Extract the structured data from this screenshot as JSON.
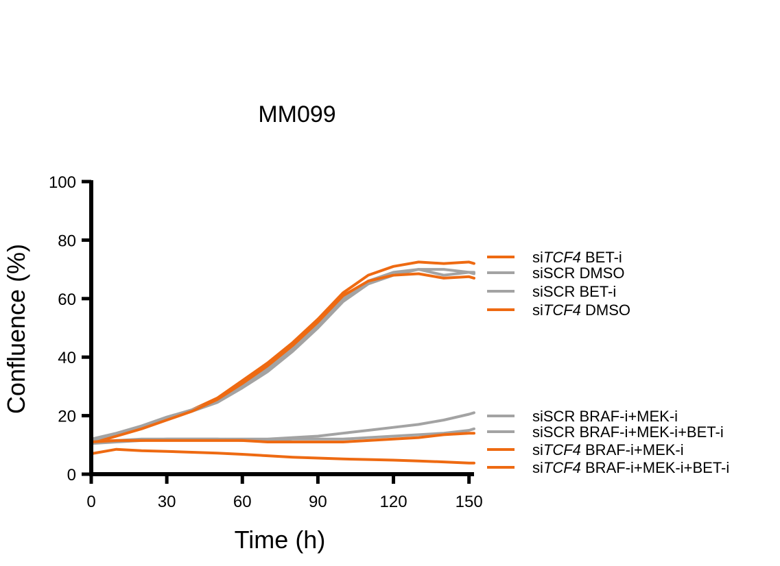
{
  "chart_data": {
    "type": "line",
    "title": "MM099",
    "xlabel": "Time (h)",
    "ylabel": "Confluence (%)",
    "xlim": [
      0,
      152
    ],
    "ylim": [
      0,
      100
    ],
    "xticks": [
      0,
      30,
      60,
      90,
      120,
      150
    ],
    "yticks": [
      0,
      20,
      40,
      60,
      80,
      100
    ],
    "colors": {
      "orange": "#ee6a12",
      "gray": "#a3a3a3"
    },
    "series": [
      {
        "name": "siTCF4 BET-i",
        "name_parts": [
          "si",
          "TCF4",
          " BET-i"
        ],
        "color": "#ee6a12",
        "x": [
          0,
          10,
          20,
          30,
          40,
          50,
          60,
          70,
          80,
          90,
          100,
          110,
          120,
          130,
          140,
          150,
          152
        ],
        "y": [
          11,
          13.5,
          16,
          19,
          22,
          26,
          32,
          38,
          45,
          53,
          62,
          68,
          71,
          72.5,
          72,
          72.5,
          72
        ]
      },
      {
        "name": "siSCR DMSO",
        "name_parts": [
          "siSCR DMSO"
        ],
        "color": "#a3a3a3",
        "x": [
          0,
          10,
          20,
          30,
          40,
          50,
          60,
          70,
          80,
          90,
          100,
          110,
          120,
          130,
          140,
          150,
          152
        ],
        "y": [
          12,
          14,
          16.5,
          19.5,
          22,
          25,
          30,
          36,
          43,
          51,
          60,
          66,
          69,
          70,
          70,
          69,
          69
        ]
      },
      {
        "name": "siSCR BET-i",
        "name_parts": [
          "siSCR BET-i"
        ],
        "color": "#a3a3a3",
        "x": [
          0,
          10,
          20,
          30,
          40,
          50,
          60,
          70,
          80,
          90,
          100,
          110,
          120,
          130,
          140,
          150,
          152
        ],
        "y": [
          11.5,
          13.5,
          16,
          19,
          21.5,
          24.5,
          29.5,
          35,
          42,
          50,
          59,
          65,
          68,
          70,
          68,
          69,
          68.5
        ]
      },
      {
        "name": "siTCF4 DMSO",
        "name_parts": [
          "si",
          "TCF4",
          " DMSO"
        ],
        "color": "#ee6a12",
        "x": [
          0,
          10,
          20,
          30,
          40,
          50,
          60,
          70,
          80,
          90,
          100,
          110,
          120,
          130,
          140,
          150,
          152
        ],
        "y": [
          10.5,
          13,
          15.5,
          18.5,
          21.5,
          25.5,
          31,
          37,
          44,
          52,
          61,
          66,
          68,
          68.5,
          67,
          67.5,
          67
        ]
      },
      {
        "name": "siSCR BRAF-i+MEK-i",
        "name_parts": [
          "siSCR BRAF-i+MEK-i"
        ],
        "color": "#a3a3a3",
        "x": [
          0,
          10,
          20,
          30,
          40,
          50,
          60,
          70,
          80,
          90,
          100,
          110,
          120,
          130,
          140,
          150,
          152
        ],
        "y": [
          11,
          11.5,
          12,
          12,
          12,
          12,
          12,
          12,
          12.5,
          13,
          14,
          15,
          16,
          17,
          18.5,
          20.5,
          21
        ]
      },
      {
        "name": "siSCR BRAF-i+MEK-i+BET-i",
        "name_parts": [
          "siSCR BRAF-i+MEK-i+BET-i"
        ],
        "color": "#a3a3a3",
        "x": [
          0,
          10,
          20,
          30,
          40,
          50,
          60,
          70,
          80,
          90,
          100,
          110,
          120,
          130,
          140,
          150,
          152
        ],
        "y": [
          10.5,
          11,
          11.5,
          12,
          12,
          12,
          11.5,
          11.5,
          12,
          12,
          12,
          12.5,
          13,
          13.5,
          14,
          15,
          15.5
        ]
      },
      {
        "name": "siTCF4 BRAF-i+MEK-i",
        "name_parts": [
          "si",
          "TCF4",
          " BRAF-i+MEK-i"
        ],
        "color": "#ee6a12",
        "x": [
          0,
          10,
          20,
          30,
          40,
          50,
          60,
          70,
          80,
          90,
          100,
          110,
          120,
          130,
          140,
          150,
          152
        ],
        "y": [
          11,
          11.5,
          11.5,
          11.5,
          11.5,
          11.5,
          11.5,
          11,
          11,
          11,
          11,
          11.5,
          12,
          12.5,
          13.5,
          14,
          14
        ]
      },
      {
        "name": "siTCF4 BRAF-i+MEK-i+BET-i",
        "name_parts": [
          "si",
          "TCF4",
          " BRAF-i+MEK-i+BET-i"
        ],
        "color": "#ee6a12",
        "x": [
          0,
          10,
          20,
          30,
          40,
          50,
          60,
          70,
          80,
          90,
          100,
          110,
          120,
          130,
          140,
          150,
          152
        ],
        "y": [
          7,
          8.5,
          8,
          7.8,
          7.5,
          7.2,
          6.8,
          6.3,
          5.8,
          5.5,
          5.2,
          5,
          4.8,
          4.5,
          4.2,
          3.8,
          3.8
        ]
      }
    ]
  }
}
